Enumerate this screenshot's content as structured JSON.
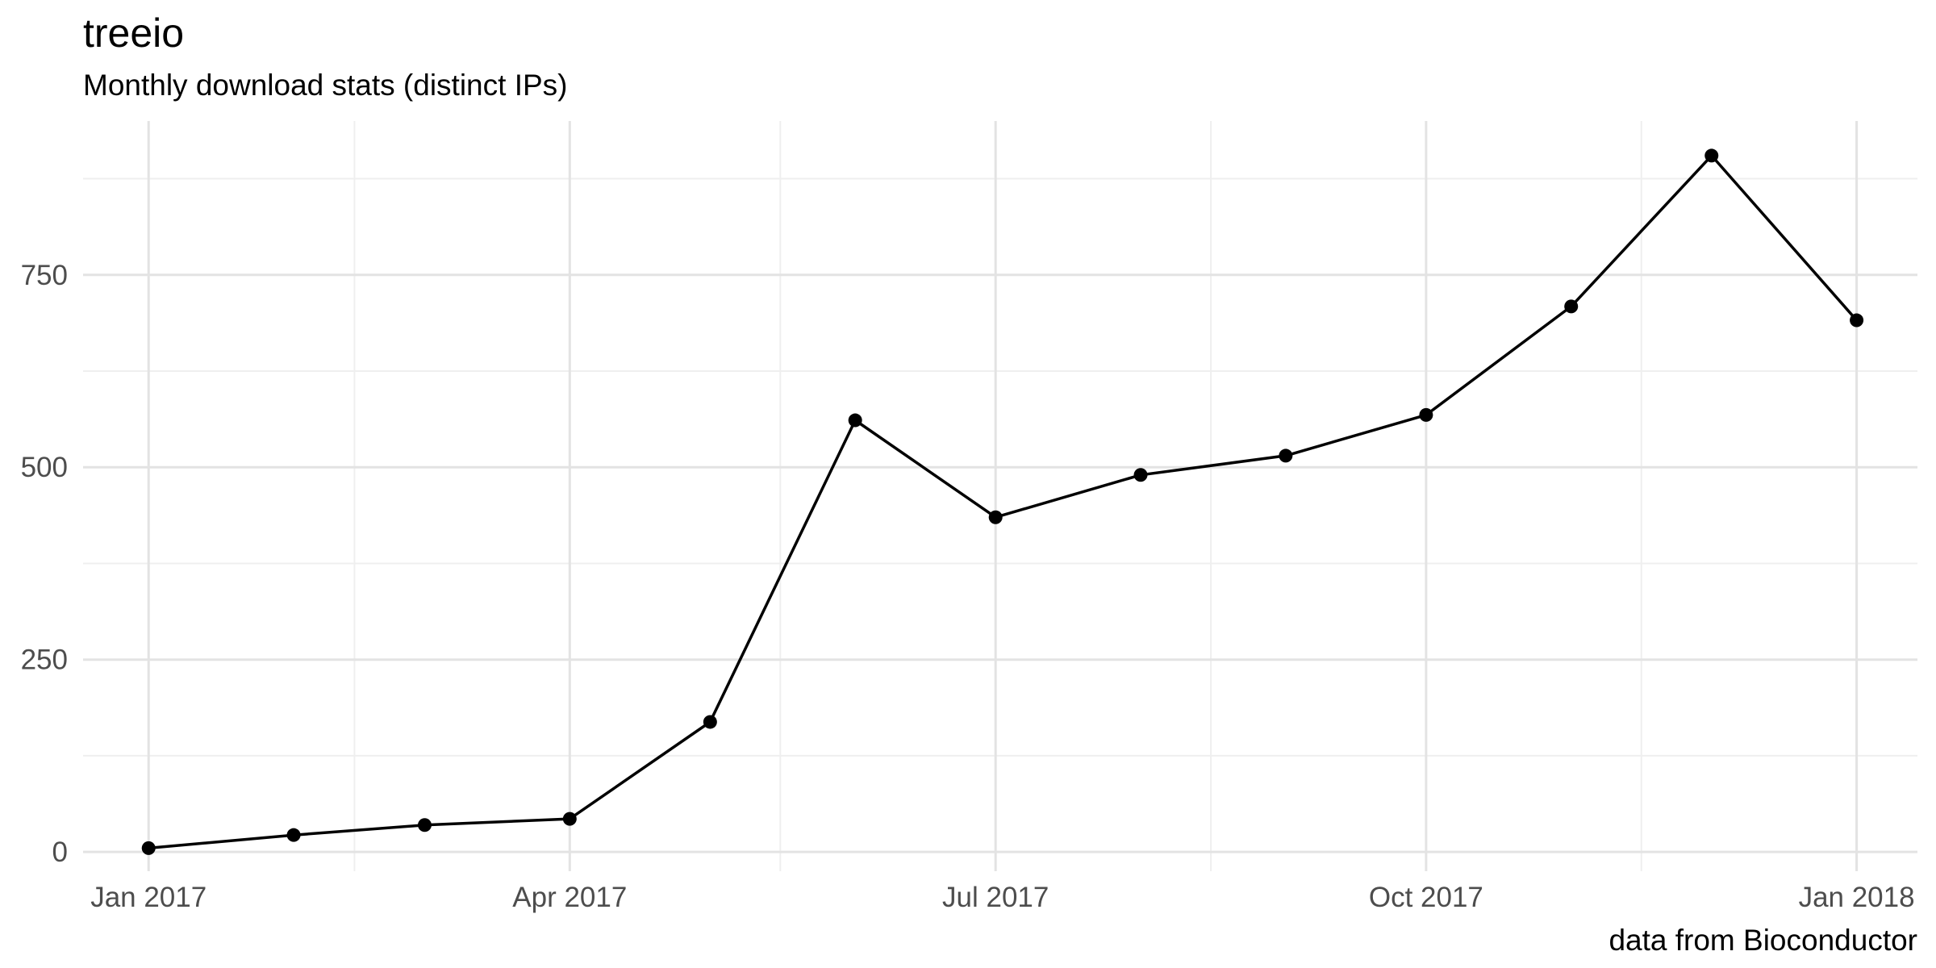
{
  "chart_data": {
    "type": "line",
    "title": "treeio",
    "subtitle": "Monthly download stats (distinct IPs)",
    "caption": "data from Bioconductor",
    "xlabel": "",
    "ylabel": "",
    "x_axis": {
      "type": "date",
      "range": [
        "2016-12-18",
        "2018-01-14"
      ],
      "ticks": [
        {
          "value": "2017-01-01",
          "label": "Jan 2017"
        },
        {
          "value": "2017-04-01",
          "label": "Apr 2017"
        },
        {
          "value": "2017-07-01",
          "label": "Jul 2017"
        },
        {
          "value": "2017-10-01",
          "label": "Oct 2017"
        },
        {
          "value": "2018-01-01",
          "label": "Jan 2018"
        }
      ],
      "minor_ticks": [
        "2017-02-14",
        "2017-05-16",
        "2017-08-16",
        "2017-11-16"
      ]
    },
    "y_axis": {
      "range": [
        -25,
        950
      ],
      "ticks": [
        0,
        250,
        500,
        750
      ],
      "minor_ticks": [
        125,
        375,
        625,
        875
      ]
    },
    "grid": true,
    "legend": "none",
    "series": [
      {
        "color": "#000000",
        "points": [
          {
            "x": "2017-01-01",
            "y": 5
          },
          {
            "x": "2017-02-01",
            "y": 22
          },
          {
            "x": "2017-03-01",
            "y": 35
          },
          {
            "x": "2017-04-01",
            "y": 43
          },
          {
            "x": "2017-05-01",
            "y": 169
          },
          {
            "x": "2017-06-01",
            "y": 561
          },
          {
            "x": "2017-07-01",
            "y": 435
          },
          {
            "x": "2017-08-01",
            "y": 490
          },
          {
            "x": "2017-09-01",
            "y": 515
          },
          {
            "x": "2017-10-01",
            "y": 568
          },
          {
            "x": "2017-11-01",
            "y": 709
          },
          {
            "x": "2017-12-01",
            "y": 905
          },
          {
            "x": "2018-01-01",
            "y": 691
          }
        ]
      }
    ]
  }
}
